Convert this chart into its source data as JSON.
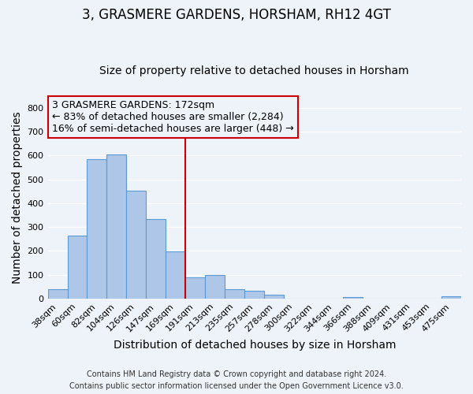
{
  "title": "3, GRASMERE GARDENS, HORSHAM, RH12 4GT",
  "subtitle": "Size of property relative to detached houses in Horsham",
  "xlabel": "Distribution of detached houses by size in Horsham",
  "ylabel": "Number of detached properties",
  "bar_labels": [
    "38sqm",
    "60sqm",
    "82sqm",
    "104sqm",
    "126sqm",
    "147sqm",
    "169sqm",
    "191sqm",
    "213sqm",
    "235sqm",
    "257sqm",
    "278sqm",
    "300sqm",
    "322sqm",
    "344sqm",
    "366sqm",
    "388sqm",
    "409sqm",
    "431sqm",
    "453sqm",
    "475sqm"
  ],
  "bar_heights": [
    38,
    263,
    585,
    603,
    452,
    333,
    198,
    90,
    100,
    38,
    32,
    15,
    0,
    0,
    0,
    5,
    0,
    0,
    0,
    0,
    8
  ],
  "bar_color": "#aec6e8",
  "bar_edge_color": "#5b9bd5",
  "ylim": [
    0,
    850
  ],
  "yticks": [
    0,
    100,
    200,
    300,
    400,
    500,
    600,
    700,
    800
  ],
  "property_line_x": 6.5,
  "property_line_color": "#cc0000",
  "annotation_line1": "3 GRASMERE GARDENS: 172sqm",
  "annotation_line2": "← 83% of detached houses are smaller (2,284)",
  "annotation_line3": "16% of semi-detached houses are larger (448) →",
  "annotation_box_color": "#cc0000",
  "footer_line1": "Contains HM Land Registry data © Crown copyright and database right 2024.",
  "footer_line2": "Contains public sector information licensed under the Open Government Licence v3.0.",
  "background_color": "#eef2f9",
  "grid_color": "#ffffff",
  "title_fontsize": 12,
  "subtitle_fontsize": 10,
  "axis_label_fontsize": 10,
  "tick_fontsize": 8,
  "annotation_fontsize": 9,
  "footer_fontsize": 7
}
